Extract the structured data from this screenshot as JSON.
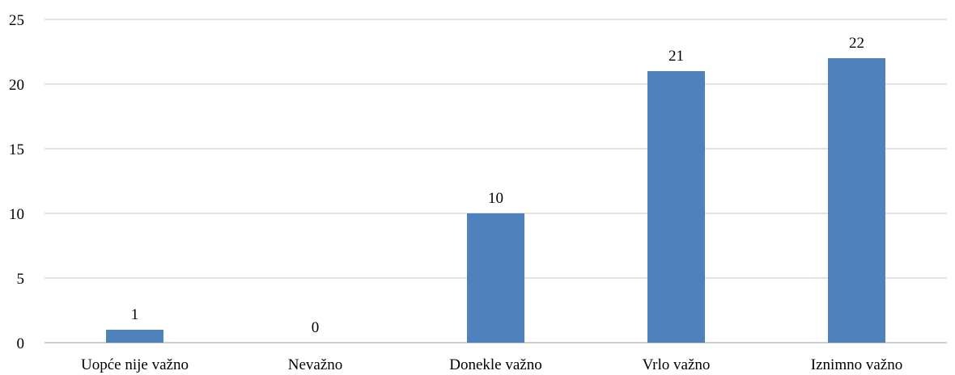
{
  "chart_data": {
    "type": "bar",
    "categories": [
      "Uopće nije važno",
      "Nevažno",
      "Donekle važno",
      "Vrlo važno",
      "Iznimno važno"
    ],
    "values": [
      1,
      0,
      10,
      21,
      22
    ],
    "title": "",
    "xlabel": "",
    "ylabel": "",
    "ylim": [
      0,
      25
    ],
    "yticks": [
      0,
      5,
      10,
      15,
      20,
      25
    ],
    "grid": true,
    "legend": "none",
    "data_labels": true,
    "bar_color": "#4f81bd",
    "grid_color": "#d9d9d9",
    "axis_color": "#bfbfbf"
  }
}
